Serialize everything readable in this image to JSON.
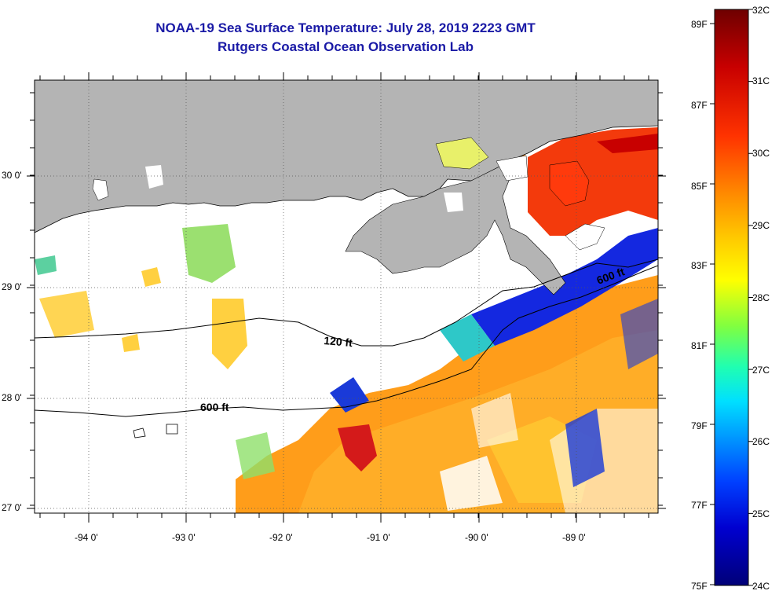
{
  "header": {
    "title": "NOAA-19 Sea Surface Temperature:  July 28, 2019 2223 GMT",
    "subtitle": "Rutgers Coastal Ocean Observation Lab"
  },
  "map": {
    "lon_labels": [
      "-94 0'",
      "-93 0'",
      "-92 0'",
      "-91 0'",
      "-90 0'",
      "-89 0'"
    ],
    "lat_labels": [
      "30 0'",
      "29 0'",
      "28 0'",
      "27 0'"
    ],
    "contours": [
      "120 ft",
      "600 ft",
      "600 ft"
    ],
    "colors": {
      "land": "#b4b4b4",
      "no_data": "#ffffff"
    }
  },
  "colorbar": {
    "celsius": [
      "32C",
      "31C",
      "30C",
      "29C",
      "28C",
      "27C",
      "26C",
      "25C",
      "24C"
    ],
    "fahrenheit": [
      "89F",
      "87F",
      "85F",
      "83F",
      "81F",
      "79F",
      "77F",
      "75F"
    ],
    "stops": [
      "#7a0000",
      "#c80000",
      "#ff3300",
      "#ff8a00",
      "#ffd000",
      "#b4ff00",
      "#44ff66",
      "#00e0ff",
      "#0090ff",
      "#0030ff",
      "#0000c8",
      "#00007a"
    ]
  }
}
